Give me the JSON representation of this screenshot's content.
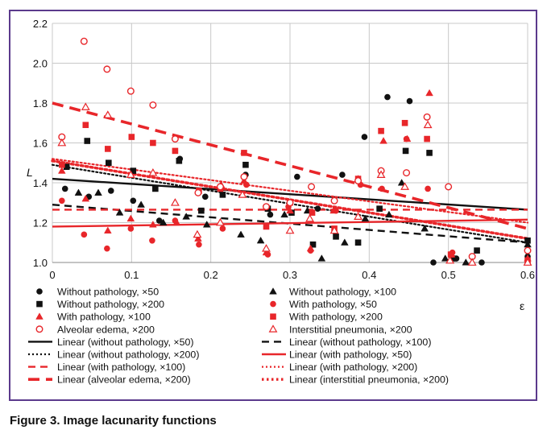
{
  "caption": "Figure 3. Image lacunarity functions",
  "chart_data": {
    "type": "scatter",
    "title": "",
    "xlabel": "ε",
    "ylabel": "L",
    "xlim": [
      0,
      0.6
    ],
    "ylim": [
      1.0,
      2.2
    ],
    "x_ticks": [
      "0",
      "0.1",
      "0.2",
      "0.3",
      "0.4",
      "0.5",
      "0.6"
    ],
    "y_ticks": [
      "1.0",
      "1.2",
      "1.4",
      "1.6",
      "1.8",
      "2.0",
      "2.2"
    ],
    "grid": true,
    "legend_position": "bottom",
    "colors": {
      "black": "#111111",
      "red": "#e8262a",
      "frame": "#5b3a8c"
    },
    "series": [
      {
        "name": "Without pathology, ×50",
        "marker": "circle-filled",
        "color": "#111111",
        "points": [
          [
            0.016,
            1.37
          ],
          [
            0.046,
            1.33
          ],
          [
            0.074,
            1.36
          ],
          [
            0.102,
            1.31
          ],
          [
            0.135,
            1.21
          ],
          [
            0.161,
            1.52
          ],
          [
            0.193,
            1.33
          ],
          [
            0.244,
            1.44
          ],
          [
            0.275,
            1.24
          ],
          [
            0.309,
            1.43
          ],
          [
            0.335,
            1.27
          ],
          [
            0.366,
            1.44
          ],
          [
            0.394,
            1.63
          ],
          [
            0.423,
            1.83
          ],
          [
            0.451,
            1.81
          ],
          [
            0.481,
            1.0
          ],
          [
            0.51,
            1.02
          ],
          [
            0.542,
            1.0
          ],
          [
            0.6,
            1.03
          ]
        ]
      },
      {
        "name": "Without pathology, ×100",
        "marker": "triangle-filled",
        "color": "#111111",
        "points": [
          [
            0.033,
            1.35
          ],
          [
            0.058,
            1.35
          ],
          [
            0.085,
            1.25
          ],
          [
            0.112,
            1.29
          ],
          [
            0.14,
            1.2
          ],
          [
            0.169,
            1.23
          ],
          [
            0.195,
            1.19
          ],
          [
            0.238,
            1.14
          ],
          [
            0.263,
            1.11
          ],
          [
            0.293,
            1.24
          ],
          [
            0.322,
            1.26
          ],
          [
            0.34,
            1.02
          ],
          [
            0.369,
            1.1
          ],
          [
            0.395,
            1.22
          ],
          [
            0.425,
            1.24
          ],
          [
            0.441,
            1.4
          ],
          [
            0.47,
            1.17
          ],
          [
            0.496,
            1.02
          ],
          [
            0.522,
            1.0
          ],
          [
            0.6,
            1.09
          ]
        ]
      },
      {
        "name": "Without pathology, ×200",
        "marker": "square-filled",
        "color": "#111111",
        "points": [
          [
            0.018,
            1.48
          ],
          [
            0.044,
            1.61
          ],
          [
            0.071,
            1.5
          ],
          [
            0.102,
            1.46
          ],
          [
            0.13,
            1.37
          ],
          [
            0.16,
            1.51
          ],
          [
            0.188,
            1.26
          ],
          [
            0.215,
            1.34
          ],
          [
            0.244,
            1.49
          ],
          [
            0.272,
            1.27
          ],
          [
            0.302,
            1.25
          ],
          [
            0.329,
            1.09
          ],
          [
            0.358,
            1.13
          ],
          [
            0.386,
            1.1
          ],
          [
            0.413,
            1.27
          ],
          [
            0.446,
            1.56
          ],
          [
            0.476,
            1.55
          ],
          [
            0.505,
            1.02
          ],
          [
            0.536,
            1.06
          ],
          [
            0.6,
            1.11
          ]
        ]
      },
      {
        "name": "With pathology, ×50",
        "marker": "circle-filled",
        "color": "#e8262a",
        "points": [
          [
            0.012,
            1.31
          ],
          [
            0.04,
            1.14
          ],
          [
            0.069,
            1.07
          ],
          [
            0.099,
            1.17
          ],
          [
            0.126,
            1.11
          ],
          [
            0.155,
            1.21
          ],
          [
            0.185,
            1.09
          ],
          [
            0.215,
            1.17
          ],
          [
            0.245,
            1.39
          ],
          [
            0.272,
            1.04
          ],
          [
            0.298,
            1.28
          ],
          [
            0.326,
            1.06
          ],
          [
            0.358,
            1.26
          ],
          [
            0.389,
            1.39
          ],
          [
            0.416,
            1.37
          ],
          [
            0.447,
            1.62
          ],
          [
            0.474,
            1.37
          ],
          [
            0.505,
            1.05
          ],
          [
            0.6,
            1.0
          ]
        ]
      },
      {
        "name": "With pathology, ×100",
        "marker": "triangle-filled",
        "color": "#e8262a",
        "points": [
          [
            0.012,
            1.46
          ],
          [
            0.042,
            1.32
          ],
          [
            0.07,
            1.16
          ],
          [
            0.099,
            1.22
          ],
          [
            0.127,
            1.19
          ],
          [
            0.157,
            1.2
          ],
          [
            0.184,
            1.12
          ],
          [
            0.213,
            1.39
          ],
          [
            0.242,
            1.41
          ],
          [
            0.27,
            1.05
          ],
          [
            0.3,
            1.26
          ],
          [
            0.326,
            1.07
          ],
          [
            0.355,
            1.26
          ],
          [
            0.386,
            1.42
          ],
          [
            0.418,
            1.61
          ],
          [
            0.448,
            1.62
          ],
          [
            0.476,
            1.85
          ],
          [
            0.504,
            1.04
          ],
          [
            0.6,
            1.02
          ]
        ]
      },
      {
        "name": "With pathology, ×200",
        "marker": "square-filled",
        "color": "#e8262a",
        "points": [
          [
            0.012,
            1.49
          ],
          [
            0.042,
            1.69
          ],
          [
            0.07,
            1.57
          ],
          [
            0.1,
            1.63
          ],
          [
            0.127,
            1.6
          ],
          [
            0.155,
            1.56
          ],
          [
            0.185,
            1.36
          ],
          [
            0.212,
            1.37
          ],
          [
            0.242,
            1.55
          ],
          [
            0.27,
            1.18
          ],
          [
            0.3,
            1.3
          ],
          [
            0.328,
            1.25
          ],
          [
            0.356,
            1.17
          ],
          [
            0.386,
            1.42
          ],
          [
            0.415,
            1.66
          ],
          [
            0.445,
            1.7
          ],
          [
            0.473,
            1.62
          ],
          [
            0.503,
            1.04
          ],
          [
            0.6,
            1.01
          ]
        ]
      },
      {
        "name": "Alveolar edema, ×200",
        "marker": "circle-open",
        "color": "#e8262a",
        "points": [
          [
            0.012,
            1.63
          ],
          [
            0.04,
            2.11
          ],
          [
            0.069,
            1.97
          ],
          [
            0.099,
            1.86
          ],
          [
            0.127,
            1.79
          ],
          [
            0.155,
            1.62
          ],
          [
            0.184,
            1.35
          ],
          [
            0.212,
            1.38
          ],
          [
            0.242,
            1.43
          ],
          [
            0.27,
            1.28
          ],
          [
            0.3,
            1.3
          ],
          [
            0.327,
            1.38
          ],
          [
            0.356,
            1.31
          ],
          [
            0.386,
            1.41
          ],
          [
            0.415,
            1.46
          ],
          [
            0.447,
            1.45
          ],
          [
            0.473,
            1.73
          ],
          [
            0.5,
            1.38
          ],
          [
            0.53,
            1.03
          ],
          [
            0.6,
            1.06
          ]
        ]
      },
      {
        "name": "Interstitial pneumonia, ×200",
        "marker": "triangle-open",
        "color": "#e8262a",
        "points": [
          [
            0.012,
            1.6
          ],
          [
            0.042,
            1.78
          ],
          [
            0.07,
            1.74
          ],
          [
            0.099,
            1.44
          ],
          [
            0.127,
            1.45
          ],
          [
            0.155,
            1.3
          ],
          [
            0.183,
            1.14
          ],
          [
            0.212,
            1.2
          ],
          [
            0.24,
            1.34
          ],
          [
            0.27,
            1.07
          ],
          [
            0.3,
            1.16
          ],
          [
            0.325,
            1.22
          ],
          [
            0.356,
            1.16
          ],
          [
            0.386,
            1.23
          ],
          [
            0.415,
            1.44
          ],
          [
            0.445,
            1.38
          ],
          [
            0.474,
            1.69
          ],
          [
            0.502,
            1.01
          ],
          [
            0.53,
            1.0
          ],
          [
            0.6,
            1.0
          ]
        ]
      }
    ],
    "trendlines": [
      {
        "name": "Linear (without pathology, ×50)",
        "color": "#111111",
        "dash": "solid",
        "x": [
          0.0,
          0.6
        ],
        "y": [
          1.42,
          1.265
        ]
      },
      {
        "name": "Linear (without pathology, ×100)",
        "color": "#111111",
        "dash": "long-dash",
        "x": [
          0.0,
          0.6
        ],
        "y": [
          1.29,
          1.1
        ]
      },
      {
        "name": "Linear (without pathology, ×200)",
        "color": "#111111",
        "dash": "dotted",
        "x": [
          0.0,
          0.6
        ],
        "y": [
          1.49,
          1.1
        ]
      },
      {
        "name": "Linear (with pathology, ×50)",
        "color": "#e8262a",
        "dash": "solid",
        "x": [
          0.0,
          0.6
        ],
        "y": [
          1.18,
          1.215
        ]
      },
      {
        "name": "Linear (with pathology, ×100)",
        "color": "#e8262a",
        "dash": "long-dash",
        "x": [
          0.0,
          0.6
        ],
        "y": [
          1.265,
          1.265
        ]
      },
      {
        "name": "Linear (with pathology, ×200)",
        "color": "#e8262a",
        "dash": "dotted",
        "x": [
          0.0,
          0.6
        ],
        "y": [
          1.52,
          1.2
        ]
      },
      {
        "name": "Linear (alveolar edema, ×200)",
        "color": "#e8262a",
        "dash": "long-dash-thick",
        "x": [
          0.0,
          0.6
        ],
        "y": [
          1.8,
          1.17
        ]
      },
      {
        "name": "Linear (interstitial pneumonia, ×200)",
        "color": "#e8262a",
        "dash": "dotted-thick",
        "x": [
          0.0,
          0.6
        ],
        "y": [
          1.51,
          1.12
        ]
      }
    ],
    "legend": [
      {
        "label": "Without pathology, ×50",
        "kind": "marker",
        "marker": "circle-filled",
        "color": "#111111"
      },
      {
        "label": "Without pathology, ×100",
        "kind": "marker",
        "marker": "triangle-filled",
        "color": "#111111"
      },
      {
        "label": "Without pathology, ×200",
        "kind": "marker",
        "marker": "square-filled",
        "color": "#111111"
      },
      {
        "label": "With pathology, ×50",
        "kind": "marker",
        "marker": "circle-filled",
        "color": "#e8262a"
      },
      {
        "label": "With pathology, ×100",
        "kind": "marker",
        "marker": "triangle-filled",
        "color": "#e8262a"
      },
      {
        "label": "With pathology, ×200",
        "kind": "marker",
        "marker": "square-filled",
        "color": "#e8262a"
      },
      {
        "label": "Alveolar edema, ×200",
        "kind": "marker",
        "marker": "circle-open",
        "color": "#e8262a"
      },
      {
        "label": "Interstitial pneumonia, ×200",
        "kind": "marker",
        "marker": "triangle-open",
        "color": "#e8262a"
      },
      {
        "label": "Linear (without pathology, ×50)",
        "kind": "line",
        "dash": "solid",
        "color": "#111111"
      },
      {
        "label": "Linear (without pathology, ×100)",
        "kind": "line",
        "dash": "long-dash",
        "color": "#111111"
      },
      {
        "label": "Linear (without pathology, ×200)",
        "kind": "line",
        "dash": "dotted",
        "color": "#111111"
      },
      {
        "label": "Linear (with pathology, ×50)",
        "kind": "line",
        "dash": "solid",
        "color": "#e8262a"
      },
      {
        "label": "Linear (with pathology, ×100)",
        "kind": "line",
        "dash": "long-dash",
        "color": "#e8262a"
      },
      {
        "label": "Linear (with pathology, ×200)",
        "kind": "line",
        "dash": "dotted",
        "color": "#e8262a"
      },
      {
        "label": "Linear (alveolar edema, ×200)",
        "kind": "line",
        "dash": "long-dash-thick",
        "color": "#e8262a"
      },
      {
        "label": "Linear (interstitial pneumonia, ×200)",
        "kind": "line",
        "dash": "dotted-thick",
        "color": "#e8262a"
      }
    ]
  }
}
